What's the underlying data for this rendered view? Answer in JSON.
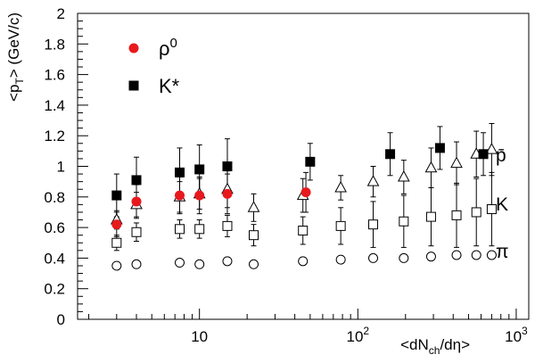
{
  "chart_data": {
    "type": "scatter",
    "xscale": "log",
    "xlim": [
      1.7,
      1200
    ],
    "ylim": [
      0,
      2
    ],
    "xlabel_parts": {
      "pre": "<dN",
      "sub": "ch",
      "post": "/dη>"
    },
    "ylabel_parts": {
      "pre": "<p",
      "sub": "T",
      "post": "> (GeV/c)"
    },
    "x_ticks": [
      {
        "value": 10,
        "base": "10",
        "exp": ""
      },
      {
        "value": 100,
        "base": "10",
        "exp": "2"
      },
      {
        "value": 1000,
        "base": "10",
        "exp": "3"
      }
    ],
    "y_ticks": [
      0,
      0.2,
      0.4,
      0.6,
      0.8,
      1,
      1.2,
      1.4,
      1.6,
      1.8,
      2
    ],
    "y_tick_labels": [
      "0",
      "0.2",
      "0.4",
      "0.6",
      "0.8",
      "1",
      "1.2",
      "1.4",
      "1.6",
      "1.8",
      "2"
    ],
    "legend": [
      {
        "base": "ρ",
        "sup": "0",
        "marker": "filled-circle",
        "color": "#e8191d"
      },
      {
        "base": "K*",
        "sup": "",
        "marker": "filled-square",
        "color": "#000000"
      }
    ],
    "species_labels": [
      {
        "text": "p̄",
        "y": 1.1
      },
      {
        "text": "K",
        "y": 0.76
      },
      {
        "text": "π",
        "y": 0.44
      }
    ],
    "series": [
      {
        "name": "ρ⁰",
        "marker": "filled-circle",
        "color": "#e8191d",
        "points": [
          {
            "x": 3,
            "y": 0.62,
            "err": 0.08
          },
          {
            "x": 4,
            "y": 0.77,
            "err": 0.11
          },
          {
            "x": 7.5,
            "y": 0.81,
            "err": 0.12
          },
          {
            "x": 10,
            "y": 0.81,
            "err": 0.12
          },
          {
            "x": 15,
            "y": 0.82,
            "err": 0.13
          },
          {
            "x": 47,
            "y": 0.83,
            "err": 0.13
          }
        ]
      },
      {
        "name": "K*",
        "marker": "filled-square",
        "color": "#000000",
        "points": [
          {
            "x": 3,
            "y": 0.81,
            "err": 0.14
          },
          {
            "x": 4,
            "y": 0.91,
            "err": 0.15
          },
          {
            "x": 7.5,
            "y": 0.96,
            "err": 0.16
          },
          {
            "x": 10,
            "y": 0.98,
            "err": 0.16
          },
          {
            "x": 15,
            "y": 1.0,
            "err": 0.18
          },
          {
            "x": 50,
            "y": 1.03,
            "err": 0.12
          },
          {
            "x": 160,
            "y": 1.08,
            "err": 0.14
          },
          {
            "x": 330,
            "y": 1.12,
            "err": 0.14
          },
          {
            "x": 620,
            "y": 1.08,
            "err": 0.14
          }
        ]
      },
      {
        "name": "p̄",
        "marker": "open-triangle",
        "color": "#000000",
        "points": [
          {
            "x": 3,
            "y": 0.65,
            "err": 0.06
          },
          {
            "x": 4,
            "y": 0.75,
            "err": 0.08
          },
          {
            "x": 7.5,
            "y": 0.8,
            "err": 0.1
          },
          {
            "x": 10,
            "y": 0.82,
            "err": 0.1
          },
          {
            "x": 15,
            "y": 0.85,
            "err": 0.12
          },
          {
            "x": 22,
            "y": 0.73,
            "err": 0.09
          },
          {
            "x": 45,
            "y": 0.81,
            "err": 0.11
          },
          {
            "x": 78,
            "y": 0.86,
            "err": 0.08
          },
          {
            "x": 125,
            "y": 0.9,
            "err": 0.1
          },
          {
            "x": 195,
            "y": 0.93,
            "err": 0.11
          },
          {
            "x": 290,
            "y": 0.99,
            "err": 0.13
          },
          {
            "x": 420,
            "y": 1.02,
            "err": 0.14
          },
          {
            "x": 560,
            "y": 1.08,
            "err": 0.15
          },
          {
            "x": 700,
            "y": 1.11,
            "err": 0.17
          }
        ]
      },
      {
        "name": "K",
        "marker": "open-square",
        "color": "#000000",
        "points": [
          {
            "x": 3,
            "y": 0.5,
            "err": 0.05
          },
          {
            "x": 4,
            "y": 0.57,
            "err": 0.06
          },
          {
            "x": 7.5,
            "y": 0.59,
            "err": 0.06
          },
          {
            "x": 10,
            "y": 0.59,
            "err": 0.06
          },
          {
            "x": 15,
            "y": 0.61,
            "err": 0.07
          },
          {
            "x": 22,
            "y": 0.55,
            "err": 0.07
          },
          {
            "x": 45,
            "y": 0.58,
            "err": 0.09
          },
          {
            "x": 78,
            "y": 0.61,
            "err": 0.12
          },
          {
            "x": 125,
            "y": 0.62,
            "err": 0.15
          },
          {
            "x": 195,
            "y": 0.64,
            "err": 0.17
          },
          {
            "x": 290,
            "y": 0.67,
            "err": 0.19
          },
          {
            "x": 420,
            "y": 0.68,
            "err": 0.21
          },
          {
            "x": 560,
            "y": 0.7,
            "err": 0.22
          },
          {
            "x": 700,
            "y": 0.72,
            "err": 0.24
          }
        ]
      },
      {
        "name": "π",
        "marker": "open-circle",
        "color": "#000000",
        "points": [
          {
            "x": 3,
            "y": 0.35,
            "err": 0
          },
          {
            "x": 4,
            "y": 0.36,
            "err": 0
          },
          {
            "x": 7.5,
            "y": 0.37,
            "err": 0
          },
          {
            "x": 10,
            "y": 0.36,
            "err": 0
          },
          {
            "x": 15,
            "y": 0.38,
            "err": 0
          },
          {
            "x": 22,
            "y": 0.36,
            "err": 0
          },
          {
            "x": 45,
            "y": 0.38,
            "err": 0
          },
          {
            "x": 78,
            "y": 0.39,
            "err": 0
          },
          {
            "x": 125,
            "y": 0.4,
            "err": 0
          },
          {
            "x": 195,
            "y": 0.4,
            "err": 0
          },
          {
            "x": 290,
            "y": 0.41,
            "err": 0
          },
          {
            "x": 420,
            "y": 0.42,
            "err": 0
          },
          {
            "x": 560,
            "y": 0.42,
            "err": 0
          },
          {
            "x": 700,
            "y": 0.42,
            "err": 0
          }
        ]
      }
    ]
  }
}
